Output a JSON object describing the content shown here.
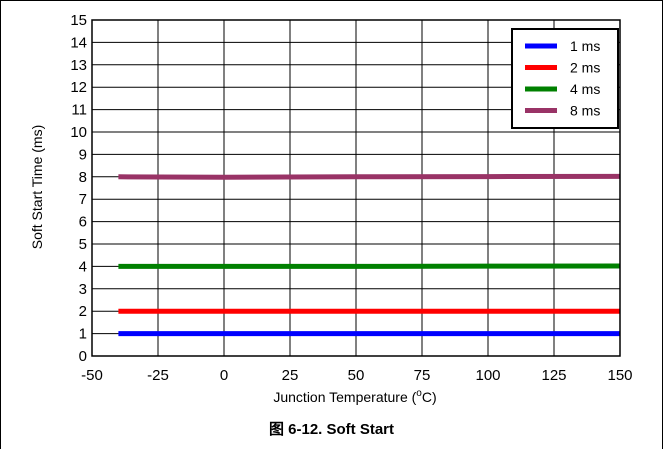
{
  "caption": "图 6-12. Soft Start",
  "chart_data": {
    "type": "line",
    "xlabel_main": "Junction Temperature (",
    "xlabel_sup": "o",
    "xlabel_end": "C)",
    "ylabel": "Soft Start Time (ms)",
    "xlim": [
      -50,
      150
    ],
    "ylim": [
      0,
      15
    ],
    "xticks": [
      -50,
      -25,
      0,
      25,
      50,
      75,
      100,
      125,
      150
    ],
    "yticks": [
      0,
      1,
      2,
      3,
      4,
      5,
      6,
      7,
      8,
      9,
      10,
      11,
      12,
      13,
      14,
      15
    ],
    "grid": true,
    "legend_position": "top-right",
    "series": [
      {
        "name": "1 ms",
        "color": "#0000ff",
        "x": [
          -40,
          0,
          50,
          100,
          150
        ],
        "y": [
          1.0,
          1.0,
          1.0,
          1.0,
          1.0
        ]
      },
      {
        "name": "2 ms",
        "color": "#ff0000",
        "x": [
          -40,
          0,
          50,
          100,
          150
        ],
        "y": [
          2.0,
          2.0,
          2.0,
          2.0,
          2.0
        ]
      },
      {
        "name": "4 ms",
        "color": "#008000",
        "x": [
          -40,
          0,
          50,
          100,
          150
        ],
        "y": [
          4.0,
          4.0,
          4.0,
          4.01,
          4.02
        ]
      },
      {
        "name": "8 ms",
        "color": "#993366",
        "x": [
          -40,
          0,
          50,
          100,
          150
        ],
        "y": [
          8.0,
          7.98,
          8.0,
          8.01,
          8.02
        ]
      }
    ]
  }
}
